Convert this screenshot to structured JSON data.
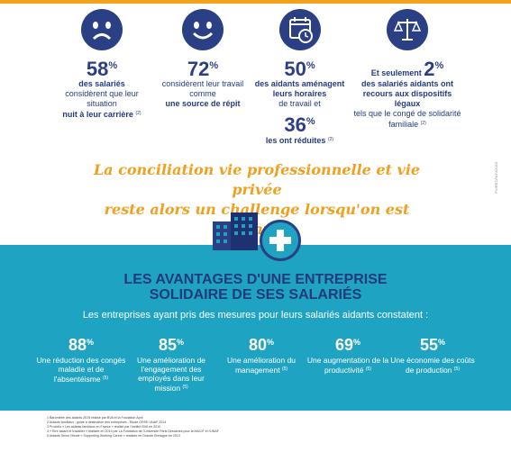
{
  "top_stats": [
    {
      "icon": "sad-face-icon",
      "percent": "58",
      "bold1": "des salariés",
      "text": "considèrent que leur situation",
      "bold2": "nuit à leur carrière",
      "ref": "(2)"
    },
    {
      "icon": "smile-face-icon",
      "percent": "72",
      "text": "considèrent leur travail comme",
      "bold2": "une source de répit"
    },
    {
      "icon": "calendar-clock-icon",
      "percent": "50",
      "bold1": "des aidants aménagent leurs horaires",
      "text": "de travail et",
      "percent2": "36",
      "bold2": "les ont réduites",
      "ref": "(2)"
    },
    {
      "icon": "scales-icon",
      "pre": "Et seulement",
      "percent": "2",
      "bold1": "des salariés aidants ont recours aux dispositifs légaux",
      "text": "tels que le congé de solidarité familiale",
      "ref": "(2)"
    }
  ],
  "tagline": {
    "line1": "La conciliation vie professionnelle et vie privée",
    "line2": "reste alors un challenge lorsqu'on est aidant."
  },
  "side_note": "PV/REC/NOV/2023",
  "section": {
    "title1": "LES AVANTAGES D'UNE ENTREPRISE",
    "title2": "SOLIDAIRE DE SES SALARIÉS",
    "subtitle": "Les entreprises ayant pris des mesures pour leurs salariés aidants constatent :"
  },
  "benefits": [
    {
      "percent": "88",
      "text": "Une réduction des congés maladie et de l'absentéisme",
      "ref": "(5)"
    },
    {
      "percent": "85",
      "text": "Une amélioration de l'engagement des employés dans leur mission",
      "ref": "(5)"
    },
    {
      "percent": "80",
      "text": "Une amélioration du management",
      "ref": "(5)"
    },
    {
      "percent": "69",
      "text": "Une augmentation de la productivité",
      "ref": "(5)"
    },
    {
      "percent": "55",
      "text": "Une économie des coûts de production",
      "ref": "(5)"
    }
  ],
  "footnotes": [
    "1 Baromètre des aidants 2019 réalisé par BVA et la Fondation April",
    "2 Aidants familiaux : guide à destination des entreprises - Etude ORSE UNAF 2014",
    "3 Proxidia « Les aidants familiaux en France » réalisé par l'institut BVA en 2010",
    "4 « Etre aidant et travailler » réalisée en 2019 par La Fondation de l'Université Paris Descartes pour la MACIF et l'UNAF",
    "5 Aidants Selon l'étude « Supporting Working Carers » réalisée en Grande Bretagne en 2013"
  ],
  "colors": {
    "navy": "#2b3f85",
    "teal": "#1fa3c2",
    "orange": "#f0a020"
  }
}
